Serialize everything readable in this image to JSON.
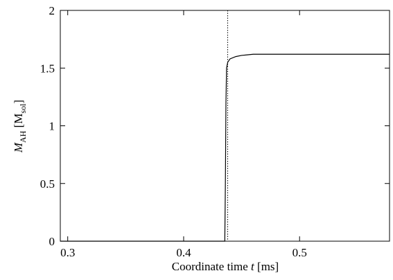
{
  "chart_data": {
    "type": "line",
    "xlabel": [
      "Coordinate time  ",
      "t",
      " [ms]"
    ],
    "ylabel": [
      "M",
      "AH",
      " [M",
      "sol",
      "]"
    ],
    "x": [
      0.2936,
      0.4355,
      0.436,
      0.4365,
      0.437,
      0.438,
      0.44,
      0.445,
      0.45,
      0.455,
      0.46,
      0.47,
      0.5776
    ],
    "series": [
      {
        "color": "#000000",
        "values": [
          0,
          0,
          0.5,
          1.2,
          1.5,
          1.55,
          1.58,
          1.6,
          1.61,
          1.615,
          1.62,
          1.62,
          1.62
        ]
      }
    ],
    "vline": 0.438,
    "xlim": [
      0.2936,
      0.5776
    ],
    "xticks": [
      0.3,
      0.4,
      0.5
    ],
    "ylim": [
      0,
      2
    ],
    "yticks": [
      0,
      0.5,
      1,
      1.5,
      2
    ]
  }
}
